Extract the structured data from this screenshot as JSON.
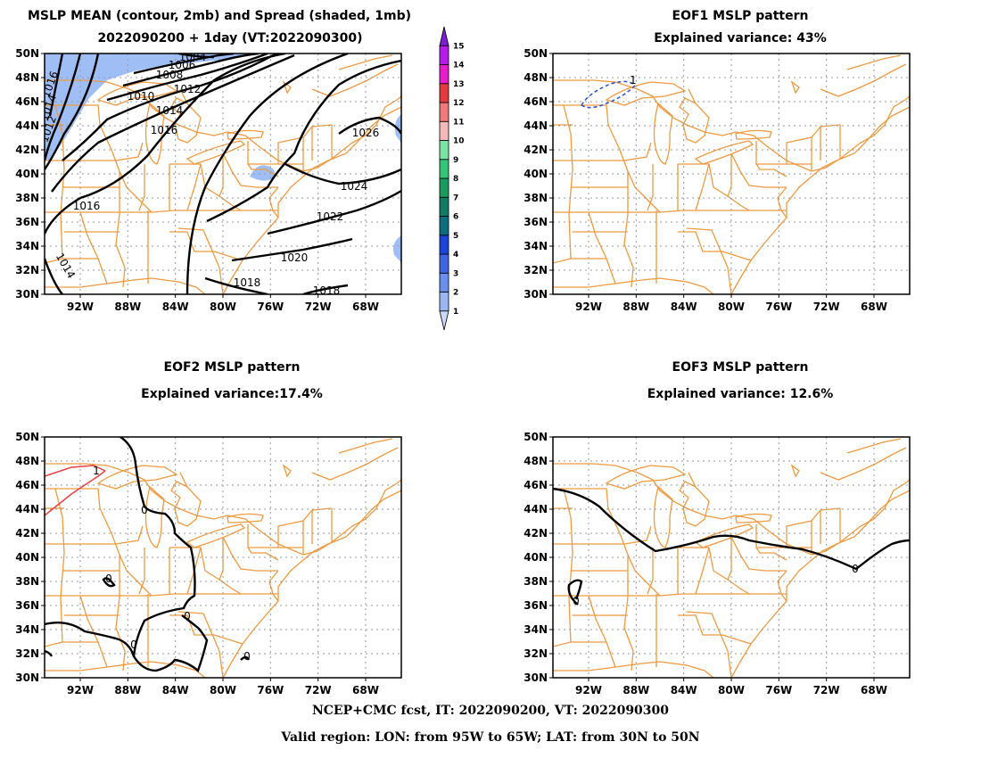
{
  "panels": [
    {
      "id": "p1",
      "title1": "MSLP MEAN (contour, 2mb) and Spread (shaded, 1mb)",
      "title2": "2022090200 + 1day (VT:2022090300)"
    },
    {
      "id": "p2",
      "title1": "EOF1 MSLP pattern",
      "title2": "Explained variance: 43%"
    },
    {
      "id": "p3",
      "title1": "EOF2 MSLP pattern",
      "title2": "Explained variance:17.4%"
    },
    {
      "id": "p4",
      "title1": "EOF3 MSLP pattern",
      "title2": "Explained variance: 12.6%"
    }
  ],
  "axes": {
    "lat_labels": [
      "30N",
      "32N",
      "34N",
      "36N",
      "38N",
      "40N",
      "42N",
      "44N",
      "46N",
      "48N",
      "50N"
    ],
    "lon_labels": [
      "92W",
      "88W",
      "84W",
      "80W",
      "76W",
      "72W",
      "68W"
    ]
  },
  "contour_labels_p1": [
    "1004",
    "1006",
    "1008",
    "1010",
    "1012",
    "1014",
    "1016",
    "1016",
    "1014",
    "1016",
    "1018",
    "1018",
    "1020",
    "1022",
    "1024",
    "1026",
    "1014",
    "1012"
  ],
  "eof_labels": {
    "p2": [
      "1"
    ],
    "p3": [
      "1",
      "0",
      "0",
      "0",
      "0",
      "0"
    ],
    "p4": [
      "0",
      "0"
    ]
  },
  "colorbar": {
    "ticks": [
      "1",
      "2",
      "3",
      "4",
      "5",
      "6",
      "7",
      "8",
      "9",
      "10",
      "11",
      "12",
      "13",
      "14",
      "15"
    ],
    "colors": [
      "#c9d7f9",
      "#9bb6f3",
      "#6b8fec",
      "#3f66e0",
      "#1b45d8",
      "#0b6d7d",
      "#127c62",
      "#1a9b5e",
      "#34c47a",
      "#7ae3a6",
      "#f4b8b8",
      "#ef7a7a",
      "#e43c3c",
      "#e51dca",
      "#b41de5",
      "#7a1ed6"
    ]
  },
  "colors": {
    "state_lines": "#ef9a40",
    "grid": "#999999",
    "contour": "#000000",
    "shading": "#9fbef5",
    "eof_pos": "#e84040",
    "eof_neg": "#2b4fd6"
  },
  "footer": {
    "line1": "NCEP+CMC fcst, IT: 2022090200, VT: 2022090300",
    "line2": "Valid region: LON: from 95W to 65W; LAT: from 30N to 50N"
  }
}
